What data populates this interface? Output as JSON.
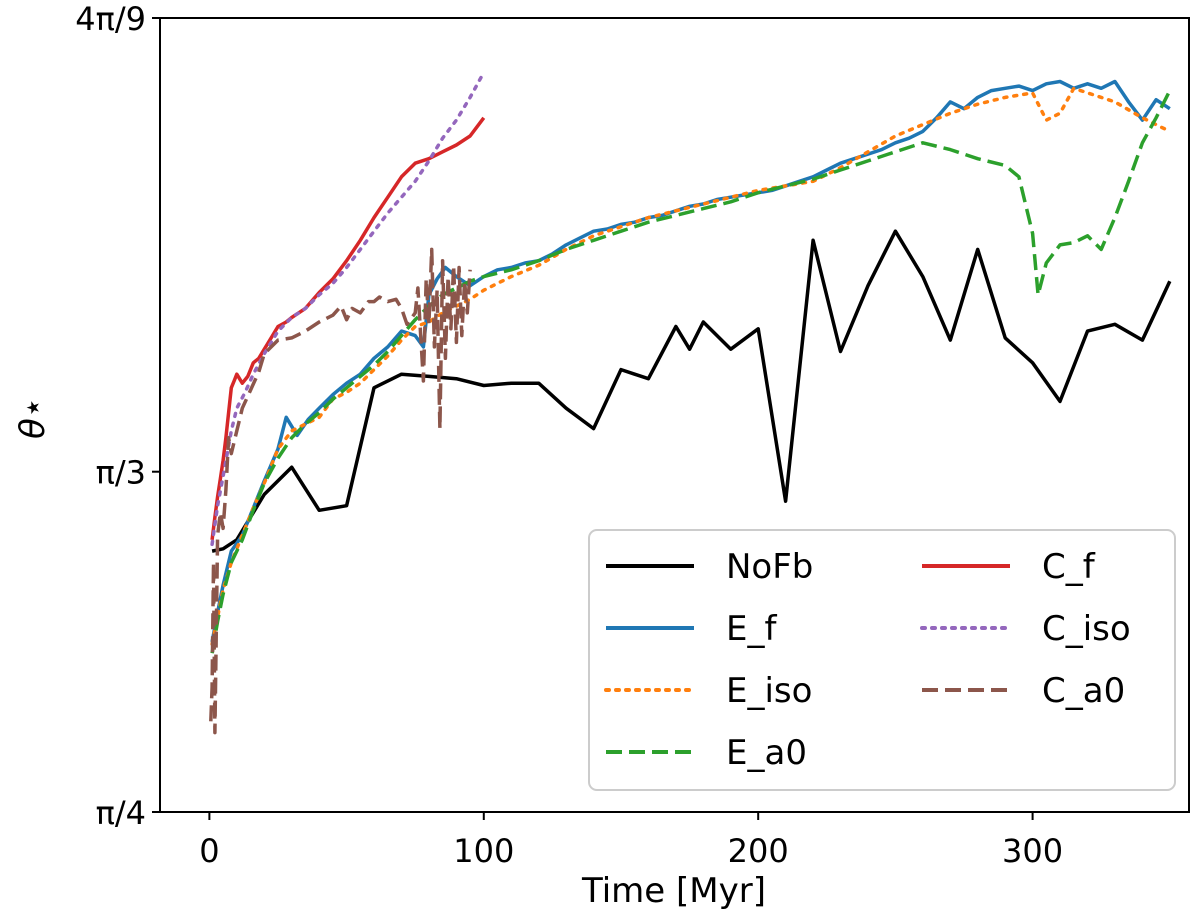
{
  "chart_data": {
    "type": "line",
    "xlabel": "Time   [Myr]",
    "ylabel": "θ⋆",
    "xlim": [
      -18,
      357
    ],
    "ylim": [
      45,
      80
    ],
    "xticks": [
      {
        "value": 0,
        "label": "0"
      },
      {
        "value": 100,
        "label": "100"
      },
      {
        "value": 200,
        "label": "200"
      },
      {
        "value": 300,
        "label": "300"
      }
    ],
    "yticks": [
      {
        "value": 45,
        "label": "π/4"
      },
      {
        "value": 60,
        "label": "π/3"
      },
      {
        "value": 80,
        "label": "4π/9"
      }
    ],
    "legend": {
      "position": "lower-right",
      "columns": 2
    },
    "series": [
      {
        "name": "NoFb",
        "color": "#000000",
        "dash": "solid",
        "x": [
          1,
          5,
          10,
          20,
          30,
          40,
          50,
          60,
          70,
          80,
          90,
          100,
          110,
          120,
          130,
          140,
          150,
          155,
          160,
          170,
          175,
          180,
          190,
          200,
          210,
          220,
          230,
          240,
          250,
          260,
          270,
          280,
          290,
          300,
          310,
          320,
          330,
          340,
          350
        ],
        "y": [
          56.5,
          56.6,
          57.0,
          59.0,
          60.2,
          58.3,
          58.5,
          63.7,
          64.3,
          64.2,
          64.1,
          63.8,
          63.9,
          63.9,
          62.8,
          61.9,
          64.5,
          64.3,
          64.1,
          66.4,
          65.4,
          66.6,
          65.4,
          66.3,
          58.7,
          70.2,
          65.3,
          68.2,
          70.6,
          68.6,
          65.8,
          69.8,
          65.9,
          64.8,
          63.1,
          66.2,
          66.5,
          65.8,
          68.4
        ]
      },
      {
        "name": "E_f",
        "color": "#1f77b4",
        "dash": "solid",
        "x": [
          1,
          3,
          5,
          8,
          12,
          16,
          20,
          25,
          28,
          32,
          36,
          40,
          45,
          50,
          55,
          60,
          65,
          70,
          75,
          78,
          80,
          83,
          86,
          90,
          95,
          100,
          105,
          110,
          115,
          120,
          125,
          130,
          135,
          140,
          145,
          150,
          155,
          160,
          165,
          170,
          175,
          180,
          185,
          190,
          195,
          200,
          205,
          210,
          215,
          220,
          225,
          230,
          235,
          240,
          245,
          250,
          255,
          260,
          265,
          270,
          275,
          280,
          285,
          290,
          295,
          300,
          305,
          310,
          315,
          320,
          325,
          330,
          335,
          340,
          345,
          350
        ],
        "y": [
          52.5,
          53.8,
          55.0,
          56.5,
          57.2,
          58.4,
          59.6,
          61.0,
          62.4,
          61.6,
          62.3,
          62.8,
          63.4,
          63.9,
          64.3,
          65.0,
          65.5,
          66.2,
          66.0,
          65.5,
          67.8,
          68.5,
          69.0,
          68.6,
          68.2,
          68.6,
          68.9,
          69.0,
          69.2,
          69.3,
          69.6,
          70.0,
          70.3,
          70.6,
          70.7,
          70.9,
          71.0,
          71.2,
          71.3,
          71.5,
          71.7,
          71.8,
          72.0,
          72.1,
          72.2,
          72.3,
          72.4,
          72.6,
          72.8,
          73.0,
          73.3,
          73.6,
          73.8,
          74.0,
          74.2,
          74.5,
          74.7,
          75.0,
          75.6,
          76.3,
          76.0,
          76.5,
          76.8,
          76.9,
          77.0,
          76.8,
          77.1,
          77.2,
          76.9,
          77.1,
          76.9,
          77.2,
          76.3,
          75.5,
          76.4,
          76.0
        ]
      },
      {
        "name": "E_iso",
        "color": "#ff7f0e",
        "dash": "dot",
        "x": [
          1,
          3,
          5,
          8,
          12,
          16,
          20,
          25,
          30,
          35,
          40,
          45,
          50,
          55,
          60,
          65,
          70,
          75,
          80,
          85,
          90,
          95,
          100,
          110,
          120,
          130,
          140,
          150,
          160,
          170,
          180,
          190,
          200,
          210,
          220,
          230,
          240,
          250,
          260,
          270,
          280,
          290,
          300,
          305,
          310,
          315,
          320,
          330,
          340,
          350
        ],
        "y": [
          52.4,
          53.6,
          54.8,
          56.0,
          57.2,
          58.4,
          59.5,
          61.0,
          61.8,
          62.1,
          62.4,
          63.2,
          63.5,
          63.9,
          64.5,
          65.1,
          65.8,
          66.4,
          66.6,
          67.0,
          67.3,
          67.6,
          68.0,
          68.6,
          69.1,
          69.8,
          70.4,
          70.8,
          71.2,
          71.5,
          71.8,
          72.1,
          72.4,
          72.6,
          72.8,
          73.4,
          74.1,
          74.8,
          75.3,
          75.8,
          76.2,
          76.5,
          76.7,
          75.5,
          75.8,
          76.9,
          76.7,
          76.3,
          75.6,
          75.0
        ]
      },
      {
        "name": "E_a0",
        "color": "#2ca02c",
        "dash": "dash",
        "x": [
          1,
          3,
          5,
          8,
          12,
          16,
          20,
          25,
          30,
          35,
          40,
          45,
          50,
          55,
          60,
          65,
          70,
          75,
          80,
          85,
          90,
          95,
          100,
          110,
          120,
          130,
          140,
          150,
          160,
          170,
          180,
          190,
          200,
          210,
          220,
          230,
          240,
          250,
          260,
          270,
          280,
          290,
          295,
          300,
          302,
          305,
          310,
          315,
          320,
          325,
          330,
          335,
          340,
          345,
          350
        ],
        "y": [
          52.0,
          53.4,
          54.6,
          56.0,
          57.0,
          58.3,
          59.5,
          60.6,
          61.5,
          62.1,
          62.6,
          63.2,
          63.7,
          64.2,
          64.7,
          65.3,
          66.0,
          66.7,
          67.3,
          67.8,
          68.1,
          68.4,
          68.6,
          68.9,
          69.3,
          69.8,
          70.2,
          70.6,
          71.0,
          71.3,
          71.6,
          71.9,
          72.3,
          72.6,
          72.9,
          73.3,
          73.7,
          74.1,
          74.5,
          74.2,
          73.8,
          73.5,
          73.0,
          70.5,
          67.8,
          69.2,
          70.0,
          70.1,
          70.4,
          69.8,
          71.2,
          72.8,
          74.5,
          75.6,
          76.8
        ]
      },
      {
        "name": "C_f",
        "color": "#d62728",
        "dash": "solid",
        "x": [
          1,
          2,
          3,
          4,
          5,
          6,
          7,
          8,
          9,
          10,
          12,
          14,
          16,
          18,
          20,
          22,
          25,
          28,
          30,
          35,
          40,
          45,
          50,
          55,
          60,
          65,
          70,
          75,
          80,
          85,
          90,
          95,
          100
        ],
        "y": [
          57.0,
          58.0,
          58.9,
          59.7,
          60.5,
          61.5,
          62.6,
          63.7,
          64.0,
          64.3,
          63.9,
          64.2,
          64.8,
          65.0,
          65.4,
          65.8,
          66.4,
          66.6,
          66.8,
          67.2,
          67.9,
          68.5,
          69.3,
          70.2,
          71.2,
          72.1,
          73.0,
          73.6,
          73.8,
          74.1,
          74.4,
          74.8,
          75.6
        ]
      },
      {
        "name": "C_iso",
        "color": "#9467bd",
        "dash": "dot",
        "x": [
          1,
          3,
          5,
          8,
          10,
          13,
          16,
          20,
          25,
          30,
          35,
          40,
          45,
          50,
          55,
          60,
          65,
          70,
          75,
          80,
          85,
          90,
          95,
          100
        ],
        "y": [
          56.8,
          58.5,
          59.8,
          61.8,
          62.8,
          63.5,
          64.3,
          65.2,
          66.2,
          66.8,
          67.2,
          67.8,
          68.3,
          69.0,
          69.8,
          70.6,
          71.4,
          72.1,
          72.8,
          73.7,
          74.7,
          75.5,
          76.5,
          77.6
        ]
      },
      {
        "name": "C_a0",
        "color": "#8c564b",
        "dash": "dash",
        "x": [
          0.5,
          1,
          1.5,
          2,
          3,
          4,
          5,
          6,
          7,
          8,
          10,
          12,
          15,
          18,
          20,
          25,
          30,
          35,
          40,
          45,
          48,
          50,
          52,
          55,
          58,
          60,
          62,
          65,
          68,
          70,
          72,
          75,
          76,
          77,
          78,
          79,
          80,
          81,
          82,
          83,
          84,
          85,
          86,
          87,
          88,
          89,
          90,
          91,
          92,
          93,
          94,
          95
        ],
        "y": [
          49.0,
          50.5,
          56.0,
          48.5,
          57.2,
          58.2,
          57.5,
          59.2,
          61.5,
          60.8,
          61.8,
          62.8,
          63.6,
          64.4,
          65.2,
          65.8,
          65.9,
          66.2,
          66.6,
          66.9,
          67.3,
          66.7,
          67.2,
          67.0,
          67.5,
          67.5,
          67.7,
          67.5,
          67.6,
          67.2,
          66.5,
          67.0,
          68.1,
          66.0,
          64.0,
          68.5,
          66.5,
          69.8,
          65.5,
          68.0,
          61.9,
          69.3,
          65.0,
          68.6,
          66.3,
          69.1,
          65.7,
          69.0,
          66.0,
          68.4,
          67.0,
          68.9
        ]
      }
    ]
  }
}
